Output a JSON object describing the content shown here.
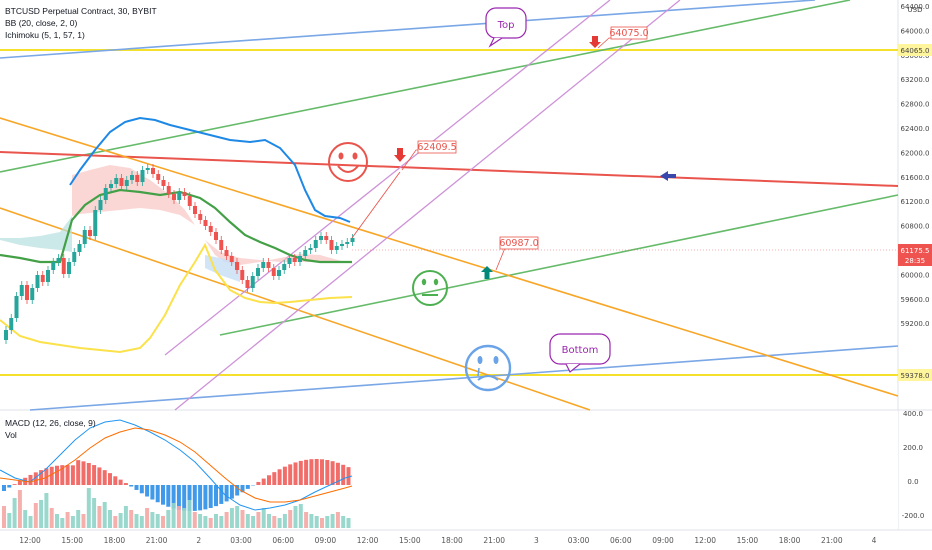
{
  "legend": {
    "symbol": "BTCUSD Perpetual Contract, 30, BYBIT",
    "bb": "BB (20, close, 2, 0)",
    "ichimoku": "Ichimoku (5, 1, 57, 1)",
    "macd": "MACD (12, 26, close, 9)",
    "vol": "Vol"
  },
  "currency": "USD",
  "y_axis": {
    "ticks": [
      "64400.0",
      "64000.0",
      "63600.0",
      "63200.0",
      "62800.0",
      "62400.0",
      "62000.0",
      "61600.0",
      "61200.0",
      "60800.0",
      "60400.0",
      "60000.0",
      "59600.0",
      "59200.0"
    ],
    "highlight_top": "64065.0",
    "highlight_bottom": "59378.0",
    "last_price": "61175.5",
    "countdown": "28:35"
  },
  "macd_axis": {
    "ticks": [
      "400.0",
      "200.0",
      "0.0",
      "-200.0"
    ]
  },
  "x_axis": {
    "ticks": [
      "12:00",
      "15:00",
      "18:00",
      "21:00",
      "2",
      "03:00",
      "06:00",
      "09:00",
      "12:00",
      "15:00",
      "18:00",
      "21:00",
      "3",
      "03:00",
      "06:00",
      "09:00",
      "12:00",
      "15:00",
      "18:00",
      "21:00",
      "4"
    ]
  },
  "annotations": {
    "top_bubble": "Top",
    "bottom_bubble": "Bottom",
    "price_top": "64075.0",
    "price_mid": "62409.5",
    "price_low": "60987.0"
  },
  "colors": {
    "up": "#26a69a",
    "down": "#ef5350",
    "bb_mid": "#43a047",
    "bb_upper": "#1e88e5",
    "bb_lower": "#fbe14a",
    "yellow_line": "#f5e12b",
    "orange_line": "#f7a627",
    "red_line": "#e9544c",
    "green_line": "#66bb6a",
    "blue_line": "#7aa7e6",
    "purple_line": "#ce93d8"
  }
}
